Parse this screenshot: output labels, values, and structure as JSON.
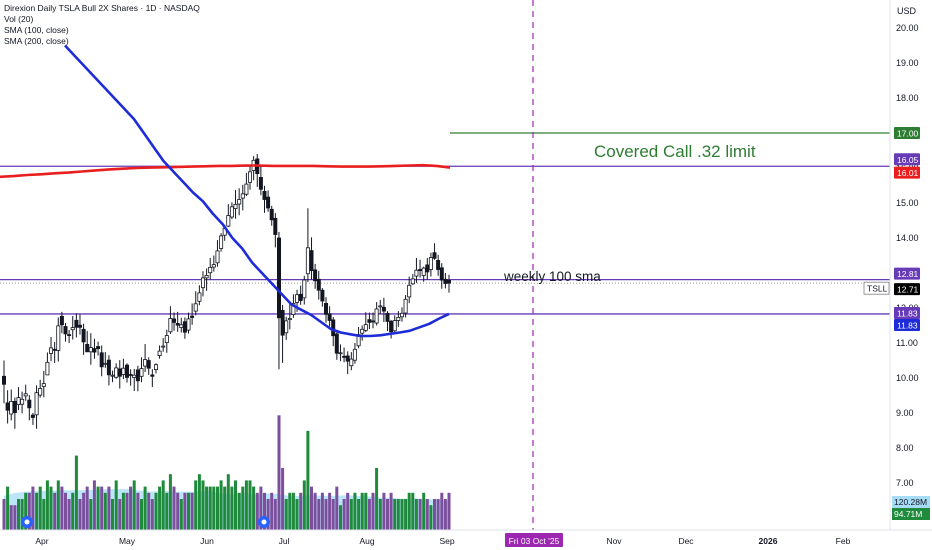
{
  "legend": {
    "title": "Direxion Daily TSLA Bull 2X Shares · 1D · NASDAQ",
    "vol": "Vol (20)",
    "sma100": "SMA (100, close)",
    "sma200": "SMA (200, close)"
  },
  "chart_data": {
    "type": "candlestick",
    "currency": "USD",
    "ticker": "TSLL",
    "y_ticks": [
      "7.00",
      "8.00",
      "9.00",
      "10.00",
      "11.00",
      "12.00",
      "13.00",
      "14.00",
      "15.00",
      "16.00",
      "17.00",
      "18.00",
      "19.00",
      "20.00"
    ],
    "ylim": [
      6.3,
      20.6
    ],
    "x_ticks": [
      "Apr",
      "May",
      "Jun",
      "Jul",
      "Aug",
      "Sep",
      "Fri 03 Oct '25",
      "Nov",
      "Dec",
      "2026",
      "Feb"
    ],
    "horizontal_lines": [
      {
        "value": 16.05,
        "label": "16.05",
        "color": "#673ab7"
      },
      {
        "value": 12.81,
        "label": "12.81",
        "color": "#673ab7"
      },
      {
        "value": 11.83,
        "label": "11.83",
        "color": "#673ab7"
      },
      {
        "value": 17.0,
        "label": "17.00",
        "color": "#2e7d32"
      }
    ],
    "price_labels": [
      {
        "value": 16.01,
        "label": "16.01",
        "color": "#e91e1e"
      },
      {
        "value": 11.83,
        "label": "11.83",
        "color": "#1e2bd9"
      },
      {
        "value": 12.71,
        "label": "12.71",
        "color": "#000000"
      }
    ],
    "volume_labels": [
      {
        "label": "120.28M",
        "color": "#a6dcf5"
      },
      {
        "label": "94.71M",
        "color": "#1f8a3b"
      }
    ],
    "annotations": [
      {
        "text": "Covered Call .32 limit",
        "color": "#2e7d32"
      },
      {
        "text": "weekly 100 sma",
        "color": "#131722"
      }
    ],
    "colors": {
      "up": "#131722",
      "down": "#131722",
      "sma100": "#1e2bd9",
      "sma200": "#e91e1e",
      "vol_up": "#1f8a3b",
      "vol_down": "#7b4f9c"
    },
    "candles": [
      [
        10.05,
        9.82,
        10.5,
        9.28
      ],
      [
        9.29,
        9.08,
        9.65,
        8.7
      ],
      [
        8.97,
        9.33,
        9.67,
        8.79
      ],
      [
        9.33,
        9.01,
        9.44,
        8.55
      ],
      [
        9.24,
        9.44,
        9.74,
        9.08
      ],
      [
        9.25,
        9.39,
        9.61,
        8.99
      ],
      [
        9.49,
        9.55,
        9.81,
        9.35
      ],
      [
        9.37,
        9.15,
        9.51,
        8.79
      ],
      [
        8.94,
        8.87,
        9.0,
        8.66
      ],
      [
        8.95,
        9.58,
        9.79,
        8.55
      ],
      [
        9.51,
        9.7,
        9.95,
        9.44
      ],
      [
        9.76,
        9.84,
        10.2,
        9.45
      ],
      [
        10.09,
        10.45,
        10.73,
        10.09
      ],
      [
        10.7,
        10.86,
        11.17,
        10.48
      ],
      [
        10.82,
        10.79,
        11.03,
        10.43
      ],
      [
        10.79,
        11.49,
        11.73,
        10.47
      ],
      [
        11.76,
        11.52,
        11.89,
        11.28
      ],
      [
        11.47,
        11.26,
        11.57,
        11.04
      ],
      [
        11.24,
        11.22,
        11.37,
        11.0
      ],
      [
        11.38,
        11.44,
        11.77,
        11.1
      ],
      [
        11.65,
        11.45,
        11.85,
        11.16
      ],
      [
        11.51,
        11.45,
        11.82,
        11.24
      ],
      [
        11.39,
        11.03,
        11.55,
        10.66
      ],
      [
        10.96,
        10.75,
        11.34,
        10.74
      ],
      [
        10.75,
        10.87,
        11.28,
        10.38
      ],
      [
        10.84,
        10.74,
        11.12,
        10.55
      ],
      [
        10.9,
        10.84,
        11.04,
        10.64
      ],
      [
        10.72,
        10.32,
        10.93,
        10.05
      ],
      [
        10.41,
        10.42,
        10.74,
        10.29
      ],
      [
        10.51,
        10.09,
        10.65,
        9.79
      ],
      [
        10.07,
        10.08,
        10.21,
        9.88
      ],
      [
        10.02,
        10.29,
        10.42,
        9.98
      ],
      [
        10.26,
        10.05,
        10.51,
        9.7
      ],
      [
        10.1,
        10.28,
        10.55,
        9.97
      ],
      [
        10.37,
        10.02,
        10.42,
        9.87
      ],
      [
        10.1,
        10.07,
        10.25,
        9.78
      ],
      [
        10.01,
        10.08,
        10.26,
        9.63
      ],
      [
        10.23,
        9.92,
        10.35,
        9.62
      ],
      [
        10.05,
        10.27,
        10.59,
        9.88
      ],
      [
        10.34,
        10.53,
        10.97,
        10.17
      ],
      [
        10.5,
        10.28,
        10.59,
        10.09
      ],
      [
        10.09,
        10.05,
        10.25,
        9.74
      ],
      [
        10.24,
        10.38,
        10.42,
        10.13
      ],
      [
        10.64,
        10.77,
        10.93,
        10.55
      ],
      [
        10.91,
        10.91,
        11.14,
        10.75
      ],
      [
        11.01,
        11.21,
        11.38,
        10.72
      ],
      [
        11.32,
        11.7,
        12.05,
        11.26
      ],
      [
        11.69,
        11.59,
        11.87,
        11.35
      ],
      [
        11.56,
        11.51,
        11.89,
        11.32
      ],
      [
        11.44,
        11.52,
        11.72,
        11.3
      ],
      [
        11.61,
        11.31,
        11.73,
        11.12
      ],
      [
        11.37,
        11.69,
        11.87,
        11.27
      ],
      [
        11.77,
        11.73,
        12.13,
        11.52
      ],
      [
        11.91,
        12.12,
        12.48,
        11.79
      ],
      [
        12.19,
        12.43,
        12.65,
        12.08
      ],
      [
        12.58,
        12.86,
        13.05,
        12.33
      ],
      [
        12.86,
        12.93,
        13.13,
        12.49
      ],
      [
        13.01,
        13.16,
        13.43,
        12.82
      ],
      [
        13.17,
        13.24,
        13.5,
        13.04
      ],
      [
        13.29,
        13.63,
        13.94,
        13.18
      ],
      [
        13.7,
        14.06,
        14.14,
        13.61
      ],
      [
        14.08,
        14.28,
        14.38,
        13.92
      ],
      [
        14.34,
        14.64,
        14.97,
        14.31
      ],
      [
        14.6,
        14.89,
        15.02,
        14.54
      ],
      [
        14.84,
        14.96,
        15.37,
        14.55
      ],
      [
        14.97,
        15.1,
        15.42,
        14.65
      ],
      [
        15.14,
        15.26,
        15.52,
        14.79
      ],
      [
        15.25,
        15.54,
        15.86,
        15.2
      ],
      [
        15.59,
        15.89,
        16.09,
        15.38
      ],
      [
        15.93,
        16.22,
        16.34,
        15.65
      ],
      [
        16.26,
        15.84,
        16.4,
        15.46
      ],
      [
        15.73,
        15.39,
        16.04,
        15.22
      ],
      [
        15.33,
        15.1,
        15.49,
        14.72
      ],
      [
        15.17,
        14.86,
        15.36,
        14.75
      ],
      [
        14.82,
        14.52,
        14.92,
        14.35
      ],
      [
        14.56,
        14.1,
        14.71,
        13.73
      ],
      [
        14.0,
        11.72,
        14.17,
        10.25
      ],
      [
        11.93,
        11.22,
        12.09,
        10.43
      ],
      [
        11.29,
        11.63,
        11.75,
        11.09
      ],
      [
        11.67,
        11.7,
        12.18,
        11.39
      ],
      [
        11.81,
        12.13,
        12.39,
        11.72
      ],
      [
        12.16,
        12.38,
        12.52,
        11.89
      ],
      [
        12.39,
        12.21,
        12.64,
        12.09
      ],
      [
        12.29,
        12.8,
        12.92,
        12.1
      ],
      [
        12.98,
        13.72,
        14.85,
        12.74
      ],
      [
        13.64,
        13.07,
        14.02,
        12.81
      ],
      [
        13.09,
        12.78,
        13.26,
        12.55
      ],
      [
        12.82,
        12.51,
        13.06,
        12.24
      ],
      [
        12.51,
        12.2,
        12.57,
        12.04
      ],
      [
        12.13,
        11.82,
        12.31,
        11.58
      ],
      [
        11.83,
        11.64,
        12.05,
        11.47
      ],
      [
        11.66,
        11.21,
        11.74,
        10.91
      ],
      [
        11.26,
        10.71,
        11.3,
        10.52
      ],
      [
        10.7,
        10.72,
        10.96,
        10.48
      ],
      [
        10.62,
        10.59,
        10.87,
        10.45
      ],
      [
        10.63,
        10.48,
        10.76,
        10.11
      ],
      [
        10.35,
        10.54,
        10.74,
        10.22
      ],
      [
        10.51,
        10.82,
        11.0,
        10.41
      ],
      [
        10.92,
        11.24,
        11.46,
        10.85
      ],
      [
        11.28,
        11.39,
        11.5,
        11.07
      ],
      [
        11.36,
        11.53,
        11.88,
        11.31
      ],
      [
        11.67,
        11.59,
        11.87,
        11.4
      ],
      [
        11.63,
        11.61,
        11.87,
        11.42
      ],
      [
        11.57,
        11.97,
        12.17,
        11.5
      ],
      [
        12.04,
        12.06,
        12.23,
        11.83
      ],
      [
        12.02,
        11.91,
        12.29,
        11.6
      ],
      [
        11.85,
        11.62,
        11.91,
        11.34
      ],
      [
        11.62,
        11.32,
        11.66,
        11.13
      ],
      [
        11.35,
        11.64,
        11.79,
        11.31
      ],
      [
        11.64,
        11.73,
        11.91,
        11.46
      ],
      [
        11.75,
        11.85,
        12.02,
        11.61
      ],
      [
        11.86,
        12.25,
        12.37,
        11.73
      ],
      [
        12.32,
        12.65,
        12.9,
        12.14
      ],
      [
        12.69,
        12.83,
        12.97,
        12.66
      ],
      [
        12.91,
        13.08,
        13.43,
        12.72
      ],
      [
        13.1,
        13.07,
        13.38,
        12.87
      ],
      [
        12.93,
        13.14,
        13.18,
        12.75
      ],
      [
        13.23,
        13.03,
        13.43,
        12.8
      ],
      [
        13.1,
        13.44,
        13.58,
        12.9
      ],
      [
        13.58,
        13.42,
        13.85,
        13.38
      ],
      [
        13.36,
        13.1,
        13.52,
        12.92
      ],
      [
        13.15,
        12.8,
        13.28,
        12.55
      ],
      [
        12.82,
        12.7,
        13.0,
        12.56
      ],
      [
        12.79,
        12.71,
        12.95,
        12.44
      ]
    ],
    "sma100": [
      19.5,
      19.2,
      18.9,
      18.6,
      18.3,
      18.0,
      17.7,
      17.4,
      17.0,
      16.6,
      16.2,
      15.9,
      15.6,
      15.3,
      15.05,
      14.7,
      14.4,
      14.0,
      13.7,
      13.3,
      13.0,
      12.7,
      12.4,
      12.1,
      11.95,
      11.8,
      11.6,
      11.4,
      11.3,
      11.25,
      11.2,
      11.2,
      11.22,
      11.26,
      11.3,
      11.35,
      11.45,
      11.55,
      11.7,
      11.83
    ],
    "sma200": [
      15.75,
      15.77,
      15.8,
      15.82,
      15.85,
      15.87,
      15.9,
      15.93,
      15.96,
      15.98,
      16.0,
      16.01,
      16.02,
      16.03,
      16.04,
      16.05,
      16.06,
      16.06,
      16.07,
      16.07,
      16.06,
      16.06,
      16.06,
      16.06,
      16.05,
      16.04,
      16.04,
      16.04,
      16.05,
      16.06,
      16.07,
      16.08,
      16.06,
      16.01
    ],
    "vol_avg": [
      0.55,
      0.6,
      0.62,
      0.63,
      0.63,
      0.64,
      0.64,
      0.64,
      0.65,
      0.66,
      0.66,
      0.66,
      0.63,
      0.62,
      0.63,
      0.62,
      0.62,
      0.62,
      0.63,
      0.59,
      0.57,
      0.6,
      0.57,
      0.59,
      0.58,
      0.55,
      0.55,
      0.56,
      0.55,
      0.55,
      0.56,
      0.55,
      0.54,
      0.52,
      0.52,
      0.5,
      0.51,
      0.5,
      0.49,
      0.48
    ],
    "volume": [
      {
        "v": 0.5,
        "up": false
      },
      {
        "v": 0.7,
        "up": true
      },
      {
        "v": 0.4,
        "up": false
      },
      {
        "v": 0.4,
        "up": false
      },
      {
        "v": 0.5,
        "up": true
      },
      {
        "v": 0.5,
        "up": true
      },
      {
        "v": 0.6,
        "up": true
      },
      {
        "v": 0.6,
        "up": false
      },
      {
        "v": 0.7,
        "up": false
      },
      {
        "v": 0.6,
        "up": true
      },
      {
        "v": 0.7,
        "up": true
      },
      {
        "v": 0.5,
        "up": true
      },
      {
        "v": 0.8,
        "up": true
      },
      {
        "v": 0.7,
        "up": true
      },
      {
        "v": 0.6,
        "up": false
      },
      {
        "v": 0.8,
        "up": true
      },
      {
        "v": 0.7,
        "up": false
      },
      {
        "v": 0.6,
        "up": false
      },
      {
        "v": 0.5,
        "up": false
      },
      {
        "v": 0.6,
        "up": true
      },
      {
        "v": 1.2,
        "up": true
      },
      {
        "v": 0.5,
        "up": false
      },
      {
        "v": 0.6,
        "up": false
      },
      {
        "v": 0.7,
        "up": false
      },
      {
        "v": 0.5,
        "up": true
      },
      {
        "v": 0.8,
        "up": false
      },
      {
        "v": 0.7,
        "up": true
      },
      {
        "v": 0.7,
        "up": false
      },
      {
        "v": 0.6,
        "up": true
      },
      {
        "v": 0.7,
        "up": false
      },
      {
        "v": 0.5,
        "up": true
      },
      {
        "v": 0.8,
        "up": true
      },
      {
        "v": 0.5,
        "up": false
      },
      {
        "v": 0.6,
        "up": true
      },
      {
        "v": 0.6,
        "up": false
      },
      {
        "v": 0.7,
        "up": false
      },
      {
        "v": 0.8,
        "up": true
      },
      {
        "v": 0.6,
        "up": false
      },
      {
        "v": 0.5,
        "up": true
      },
      {
        "v": 0.7,
        "up": true
      },
      {
        "v": 0.6,
        "up": false
      },
      {
        "v": 0.5,
        "up": false
      },
      {
        "v": 0.6,
        "up": true
      },
      {
        "v": 0.7,
        "up": true
      },
      {
        "v": 0.8,
        "up": true
      },
      {
        "v": 0.6,
        "up": true
      },
      {
        "v": 0.9,
        "up": true
      },
      {
        "v": 0.7,
        "up": false
      },
      {
        "v": 0.6,
        "up": false
      },
      {
        "v": 0.5,
        "up": true
      },
      {
        "v": 0.6,
        "up": false
      },
      {
        "v": 0.6,
        "up": true
      },
      {
        "v": 0.6,
        "up": false
      },
      {
        "v": 0.8,
        "up": true
      },
      {
        "v": 0.9,
        "up": true
      },
      {
        "v": 0.8,
        "up": true
      },
      {
        "v": 0.7,
        "up": true
      },
      {
        "v": 0.7,
        "up": true
      },
      {
        "v": 0.7,
        "up": true
      },
      {
        "v": 0.7,
        "up": true
      },
      {
        "v": 0.8,
        "up": true
      },
      {
        "v": 0.7,
        "up": true
      },
      {
        "v": 0.9,
        "up": true
      },
      {
        "v": 0.7,
        "up": true
      },
      {
        "v": 0.8,
        "up": true
      },
      {
        "v": 0.6,
        "up": true
      },
      {
        "v": 0.7,
        "up": true
      },
      {
        "v": 0.8,
        "up": true
      },
      {
        "v": 0.8,
        "up": true
      },
      {
        "v": 0.7,
        "up": true
      },
      {
        "v": 0.6,
        "up": false
      },
      {
        "v": 0.7,
        "up": false
      },
      {
        "v": 0.6,
        "up": false
      },
      {
        "v": 0.5,
        "up": false
      },
      {
        "v": 0.6,
        "up": false
      },
      {
        "v": 0.5,
        "up": false
      },
      {
        "v": 1.85,
        "up": false
      },
      {
        "v": 1.0,
        "up": false
      },
      {
        "v": 0.5,
        "up": true
      },
      {
        "v": 0.6,
        "up": true
      },
      {
        "v": 0.6,
        "up": true
      },
      {
        "v": 0.5,
        "up": true
      },
      {
        "v": 0.6,
        "up": false
      },
      {
        "v": 0.8,
        "up": true
      },
      {
        "v": 1.6,
        "up": true
      },
      {
        "v": 0.7,
        "up": false
      },
      {
        "v": 0.6,
        "up": false
      },
      {
        "v": 0.5,
        "up": false
      },
      {
        "v": 0.6,
        "up": false
      },
      {
        "v": 0.5,
        "up": false
      },
      {
        "v": 0.6,
        "up": false
      },
      {
        "v": 0.5,
        "up": false
      },
      {
        "v": 0.7,
        "up": false
      },
      {
        "v": 0.4,
        "up": true
      },
      {
        "v": 0.5,
        "up": false
      },
      {
        "v": 0.6,
        "up": false
      },
      {
        "v": 0.5,
        "up": true
      },
      {
        "v": 0.6,
        "up": true
      },
      {
        "v": 0.5,
        "up": true
      },
      {
        "v": 0.6,
        "up": true
      },
      {
        "v": 0.6,
        "up": true
      },
      {
        "v": 0.5,
        "up": false
      },
      {
        "v": 0.6,
        "up": false
      },
      {
        "v": 1.0,
        "up": true
      },
      {
        "v": 0.5,
        "up": true
      },
      {
        "v": 0.6,
        "up": false
      },
      {
        "v": 0.5,
        "up": false
      },
      {
        "v": 0.6,
        "up": false
      },
      {
        "v": 0.5,
        "up": true
      },
      {
        "v": 0.5,
        "up": true
      },
      {
        "v": 0.5,
        "up": true
      },
      {
        "v": 0.5,
        "up": true
      },
      {
        "v": 0.6,
        "up": true
      },
      {
        "v": 0.6,
        "up": true
      },
      {
        "v": 0.5,
        "up": true
      },
      {
        "v": 0.5,
        "up": false
      },
      {
        "v": 0.6,
        "up": true
      },
      {
        "v": 0.5,
        "up": false
      },
      {
        "v": 0.4,
        "up": true
      },
      {
        "v": 0.5,
        "up": false
      },
      {
        "v": 0.5,
        "up": false
      },
      {
        "v": 0.6,
        "up": false
      },
      {
        "v": 0.5,
        "up": false
      },
      {
        "v": 0.6,
        "up": false
      }
    ]
  }
}
